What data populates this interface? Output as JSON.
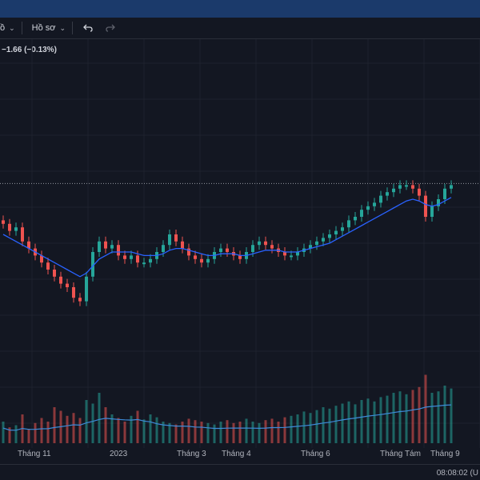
{
  "toolbar": {
    "left_cut_label": "ồ",
    "profile_label": "Hồ sơ",
    "undo_icon": "undo-icon",
    "redo_icon": "redo-icon"
  },
  "legend": {
    "change_text": "−1.66 (−0.13%)"
  },
  "colors": {
    "up": "#26a69a",
    "down": "#ef5350",
    "ma": "#2962ff",
    "volume_ma": "#3d8bd9",
    "background": "#131722"
  },
  "x_axis_labels": [
    "Tháng 11",
    "2023",
    "Tháng 3",
    "Tháng 4",
    "Tháng 6",
    "Tháng Tám",
    "Tháng 9"
  ],
  "clock": "08:08:02 (U",
  "chart_data": {
    "type": "candlestick",
    "title": "",
    "xlabel": "",
    "ylabel": "",
    "x_ticks": [
      "Tháng 11",
      "2023",
      "Tháng 3",
      "Tháng 4",
      "Tháng 6",
      "Tháng Tám",
      "Tháng 9"
    ],
    "price_line_note": "dotted last-price line",
    "ylim": [
      0,
      100
    ],
    "series": [
      {
        "name": "",
        "kind": "candles",
        "close_path": [
          76,
          72,
          74,
          66,
          62,
          58,
          54,
          50,
          46,
          42,
          40,
          34,
          32,
          46,
          60,
          66,
          62,
          64,
          58,
          56,
          58,
          54,
          54,
          56,
          60,
          64,
          70,
          66,
          62,
          58,
          56,
          54,
          56,
          60,
          62,
          60,
          58,
          56,
          60,
          64,
          66,
          64,
          62,
          60,
          58,
          58,
          60,
          62,
          64,
          66,
          68,
          70,
          72,
          74,
          78,
          80,
          84,
          86,
          88,
          92,
          94,
          96,
          98,
          98,
          96,
          92,
          80,
          86,
          90,
          96,
          98
        ]
      },
      {
        "name": "",
        "kind": "moving-average",
        "values": [
          70,
          68,
          66,
          64,
          62,
          60,
          58,
          56,
          54,
          52,
          50,
          48,
          46,
          48,
          52,
          56,
          58,
          60,
          60,
          60,
          60,
          59,
          58,
          58,
          58,
          59,
          61,
          62,
          62,
          61,
          60,
          59,
          58,
          58,
          59,
          59,
          59,
          58,
          58,
          59,
          60,
          61,
          61,
          61,
          60,
          60,
          60,
          61,
          62,
          63,
          64,
          65,
          67,
          69,
          71,
          73,
          75,
          77,
          79,
          81,
          83,
          85,
          87,
          89,
          90,
          89,
          87,
          86,
          87,
          89,
          91
        ]
      },
      {
        "name": "",
        "kind": "volume",
        "values": [
          30,
          22,
          25,
          40,
          20,
          28,
          35,
          30,
          50,
          45,
          38,
          42,
          35,
          60,
          55,
          70,
          50,
          40,
          35,
          30,
          38,
          45,
          33,
          40,
          36,
          30,
          28,
          26,
          30,
          34,
          32,
          30,
          28,
          26,
          30,
          32,
          28,
          30,
          34,
          30,
          28,
          32,
          34,
          30,
          36,
          38,
          40,
          44,
          42,
          46,
          50,
          48,
          52,
          55,
          58,
          54,
          60,
          62,
          58,
          64,
          66,
          70,
          72,
          68,
          74,
          78,
          95,
          70,
          72,
          80,
          76
        ]
      }
    ]
  }
}
